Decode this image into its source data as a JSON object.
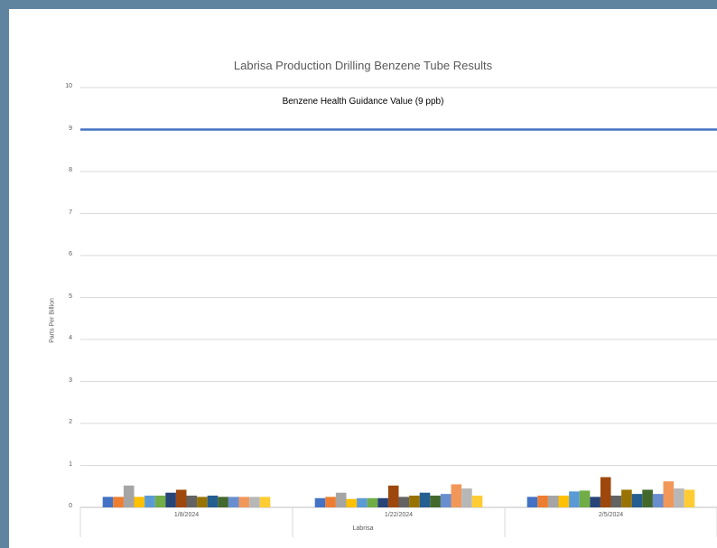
{
  "chart_data": {
    "type": "bar",
    "title": "Labrisa Production Drilling Benzene Tube Results",
    "ylabel": "Parts Per Billion",
    "xgroup_label": "Labrisa",
    "ylim": [
      0,
      10
    ],
    "yticks": [
      "0",
      "1",
      "2",
      "3",
      "4",
      "5",
      "6",
      "7",
      "8",
      "9",
      "10"
    ],
    "categories": [
      "1/8/2024",
      "1/22/2024",
      "2/5/2024"
    ],
    "grid": true,
    "legend": "none",
    "reference_line": {
      "value": 9,
      "label": "Benzene Health Guidance Value (9 ppb)",
      "color": "#4472c4"
    },
    "series": [
      {
        "values": [
          0.25,
          0.22,
          0.25
        ],
        "color": "#4472c4"
      },
      {
        "values": [
          0.25,
          0.25,
          0.28
        ],
        "color": "#ed7d31"
      },
      {
        "values": [
          0.52,
          0.35,
          0.28
        ],
        "color": "#a5a5a5"
      },
      {
        "values": [
          0.25,
          0.2,
          0.28
        ],
        "color": "#ffc000"
      },
      {
        "values": [
          0.28,
          0.22,
          0.38
        ],
        "color": "#5b9bd5"
      },
      {
        "values": [
          0.28,
          0.22,
          0.4
        ],
        "color": "#70ad47"
      },
      {
        "values": [
          0.35,
          0.22,
          0.25
        ],
        "color": "#264478"
      },
      {
        "values": [
          0.42,
          0.52,
          0.72
        ],
        "color": "#9e480e"
      },
      {
        "values": [
          0.28,
          0.25,
          0.28
        ],
        "color": "#636363"
      },
      {
        "values": [
          0.25,
          0.28,
          0.42
        ],
        "color": "#997300"
      },
      {
        "values": [
          0.28,
          0.35,
          0.32
        ],
        "color": "#255e91"
      },
      {
        "values": [
          0.25,
          0.28,
          0.42
        ],
        "color": "#43682b"
      },
      {
        "values": [
          0.25,
          0.32,
          0.32
        ],
        "color": "#698ed0"
      },
      {
        "values": [
          0.25,
          0.55,
          0.62
        ],
        "color": "#f1975a"
      },
      {
        "values": [
          0.25,
          0.45,
          0.45
        ],
        "color": "#b7b7b7"
      },
      {
        "values": [
          0.25,
          0.28,
          0.42
        ],
        "color": "#ffcd33"
      }
    ]
  }
}
